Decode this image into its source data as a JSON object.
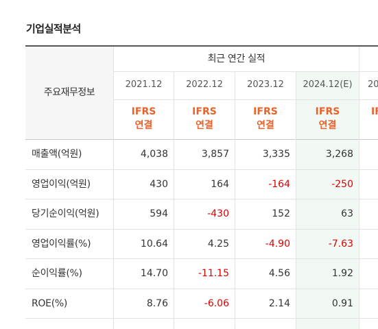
{
  "section_title": "기업실적분석",
  "table": {
    "header_label": "주요재무정보",
    "group_label": "최근 연간 실적",
    "years": [
      "2021.12",
      "2022.12",
      "2023.12",
      "2024.12(E)",
      "20"
    ],
    "basis": [
      {
        "line1": "IFRS",
        "line2": "연결"
      },
      {
        "line1": "IFRS",
        "line2": "연결"
      },
      {
        "line1": "IFRS",
        "line2": "연결"
      },
      {
        "line1": "IFRS",
        "line2": "연결"
      },
      {
        "line1": "IF",
        "line2": ""
      }
    ],
    "rows": [
      {
        "label": "매출액(억원)",
        "values": [
          "4,038",
          "3,857",
          "3,335",
          "3,268"
        ],
        "negative": [
          false,
          false,
          false,
          false
        ]
      },
      {
        "label": "영업이익(억원)",
        "values": [
          "430",
          "164",
          "-164",
          "-250"
        ],
        "negative": [
          false,
          false,
          true,
          true
        ]
      },
      {
        "label": "당기순이익(억원)",
        "values": [
          "594",
          "-430",
          "152",
          "63"
        ],
        "negative": [
          false,
          true,
          false,
          false
        ]
      },
      {
        "label": "영업이익률(%)",
        "values": [
          "10.64",
          "4.25",
          "-4.90",
          "-7.63"
        ],
        "negative": [
          false,
          false,
          true,
          true
        ]
      },
      {
        "label": "순이익률(%)",
        "values": [
          "14.70",
          "-11.15",
          "4.56",
          "1.92"
        ],
        "negative": [
          false,
          true,
          false,
          false
        ]
      },
      {
        "label": "ROE(%)",
        "values": [
          "8.76",
          "-6.06",
          "2.14",
          "0.91"
        ],
        "negative": [
          false,
          true,
          false,
          false
        ]
      }
    ]
  },
  "colors": {
    "ifrs_accent": "#e8622b",
    "negative_value": "#dd0000",
    "estimate_column_bg": "#f2f8f3"
  }
}
